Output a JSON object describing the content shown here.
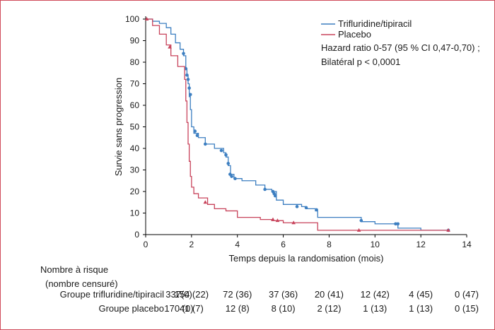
{
  "chart_data": {
    "type": "line",
    "xlabel": "Temps depuis la randomisation (mois)",
    "ylabel": "Survie sans progression",
    "xlim": [
      0,
      14
    ],
    "ylim": [
      0,
      100
    ],
    "xticks": [
      0,
      2,
      4,
      6,
      8,
      10,
      12,
      14
    ],
    "yticks": [
      0,
      10,
      20,
      30,
      40,
      50,
      60,
      70,
      80,
      90,
      100
    ],
    "grid": false,
    "legend_position": "top-right",
    "annotation_lines": [
      "Hazard ratio 0-57 (95 % CI 0,47-0,70) ;",
      "Bilatéral p < 0,0001"
    ],
    "series": [
      {
        "name": "Trifluridine/tipiracil",
        "color": "#3d7fc1",
        "marker": "circle",
        "steps": [
          [
            0,
            100
          ],
          [
            0.3,
            99
          ],
          [
            0.6,
            98
          ],
          [
            0.9,
            96
          ],
          [
            1.1,
            93
          ],
          [
            1.3,
            89
          ],
          [
            1.5,
            86
          ],
          [
            1.65,
            83
          ],
          [
            1.75,
            77
          ],
          [
            1.8,
            74
          ],
          [
            1.85,
            70
          ],
          [
            1.9,
            64
          ],
          [
            1.95,
            58
          ],
          [
            2.0,
            50
          ],
          [
            2.1,
            47
          ],
          [
            2.3,
            45
          ],
          [
            2.6,
            42
          ],
          [
            3.0,
            40
          ],
          [
            3.4,
            38
          ],
          [
            3.5,
            36
          ],
          [
            3.6,
            32
          ],
          [
            3.7,
            28
          ],
          [
            3.85,
            26
          ],
          [
            4.2,
            25
          ],
          [
            4.8,
            23
          ],
          [
            5.2,
            21
          ],
          [
            5.5,
            20
          ],
          [
            5.7,
            16
          ],
          [
            6.0,
            14
          ],
          [
            6.8,
            13
          ],
          [
            7.0,
            12
          ],
          [
            7.4,
            11
          ],
          [
            7.5,
            8
          ],
          [
            9.0,
            8
          ],
          [
            9.4,
            6
          ],
          [
            10.0,
            5
          ],
          [
            11.0,
            3
          ],
          [
            12.0,
            2
          ],
          [
            13.2,
            1.5
          ]
        ],
        "censored": [
          [
            1.65,
            84
          ],
          [
            1.75,
            77
          ],
          [
            1.8,
            74
          ],
          [
            1.85,
            72
          ],
          [
            1.9,
            68
          ],
          [
            1.95,
            65
          ],
          [
            2.15,
            48
          ],
          [
            2.25,
            46
          ],
          [
            2.6,
            42
          ],
          [
            3.3,
            39
          ],
          [
            3.5,
            37
          ],
          [
            3.6,
            33
          ],
          [
            3.68,
            28
          ],
          [
            3.75,
            27
          ],
          [
            3.9,
            26
          ],
          [
            5.2,
            21
          ],
          [
            5.55,
            20
          ],
          [
            5.6,
            19
          ],
          [
            5.65,
            18
          ],
          [
            6.6,
            13
          ],
          [
            7.0,
            12.5
          ],
          [
            7.45,
            11.5
          ],
          [
            9.4,
            6.5
          ],
          [
            10.9,
            5
          ],
          [
            11.0,
            5
          ],
          [
            13.2,
            2
          ]
        ]
      },
      {
        "name": "Placebo",
        "color": "#c8435b",
        "marker": "triangle",
        "steps": [
          [
            0,
            100
          ],
          [
            0.3,
            97
          ],
          [
            0.6,
            93
          ],
          [
            0.9,
            88
          ],
          [
            1.1,
            83
          ],
          [
            1.4,
            78
          ],
          [
            1.7,
            72
          ],
          [
            1.75,
            62
          ],
          [
            1.8,
            52
          ],
          [
            1.85,
            42
          ],
          [
            1.9,
            34
          ],
          [
            1.95,
            27
          ],
          [
            2.0,
            22
          ],
          [
            2.1,
            19
          ],
          [
            2.3,
            17
          ],
          [
            2.7,
            14
          ],
          [
            3.0,
            12
          ],
          [
            3.5,
            11
          ],
          [
            4.0,
            8
          ],
          [
            5.0,
            7
          ],
          [
            5.5,
            6.5
          ],
          [
            6.0,
            5.5
          ],
          [
            7.5,
            2
          ],
          [
            13.2,
            2
          ]
        ],
        "censored": [
          [
            0.05,
            100
          ],
          [
            1.05,
            87
          ],
          [
            2.6,
            15
          ],
          [
            5.55,
            7
          ],
          [
            5.75,
            6.5
          ],
          [
            6.45,
            5.5
          ],
          [
            9.3,
            2
          ],
          [
            13.2,
            2
          ]
        ]
      }
    ]
  },
  "risk_table": {
    "heading_line1": "Nombre à risque",
    "heading_line2": "(nombre censuré)",
    "time_points": [
      0,
      2,
      4,
      6,
      8,
      10,
      12,
      14
    ],
    "rows": [
      {
        "label": "Groupe trifluridine/tipiracil",
        "values": [
          "337(0)",
          "154 (22)",
          "72 (36)",
          "37 (36)",
          "20 (41)",
          "12 (42)",
          "4 (45)",
          "0 (47)"
        ]
      },
      {
        "label": "Groupe placebo",
        "values": [
          "170 (0)",
          "41 (7)",
          "12 (8)",
          "8 (10)",
          "2 (12)",
          "1 (13)",
          "1 (13)",
          "0 (15)"
        ]
      }
    ]
  }
}
